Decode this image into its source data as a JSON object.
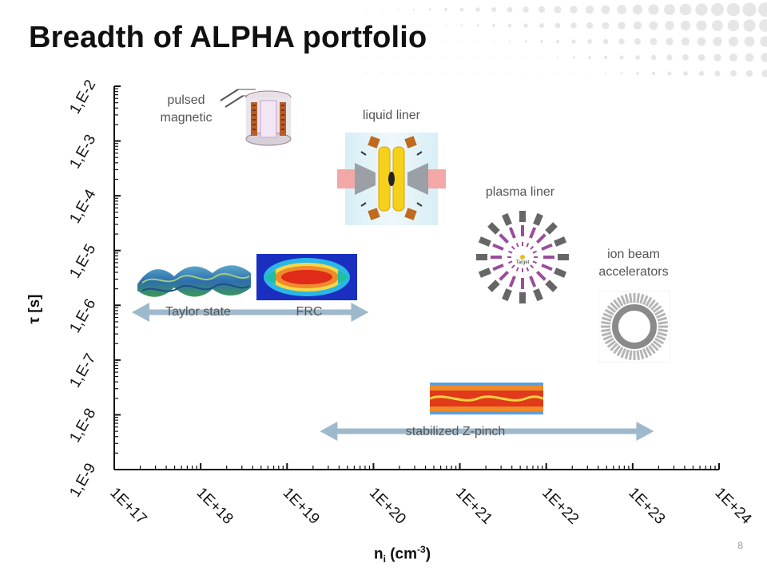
{
  "slide": {
    "title": "Breadth of ALPHA portfolio",
    "page_number": "8"
  },
  "chart_data": {
    "type": "scatter",
    "xlabel": "n_i (cm^-3)",
    "ylabel": "τ [s]",
    "x_scale": "log",
    "y_scale": "log",
    "xlim": [
      1e+17,
      1e+24
    ],
    "ylim": [
      1e-09,
      0.01
    ],
    "x_ticks": [
      "1E+17",
      "1E+18",
      "1E+19",
      "1E+20",
      "1E+21",
      "1E+22",
      "1E+23",
      "1E+24"
    ],
    "y_ticks": [
      "1,E-9",
      "1,E-8",
      "1,E-7",
      "1,E-6",
      "1,E-5",
      "1,E-4",
      "1,E-3",
      "1,E-2"
    ],
    "annotations": [
      {
        "text": "pulsed magnetic",
        "lines": [
          "pulsed",
          "magnetic"
        ],
        "image": "pulsed-magnetic-coil"
      },
      {
        "text": "liquid liner",
        "image": "liquid-liner-schematic"
      },
      {
        "text": "plasma liner",
        "image": "plasma-liner-jets"
      },
      {
        "text": "ion beam accelerators",
        "lines": [
          "ion beam",
          "accelerators"
        ],
        "image": "ion-beam-ring"
      },
      {
        "text": "Taylor state",
        "image": "taylor-state-twisted-flux"
      },
      {
        "text": "FRC",
        "image": "frc-simulation"
      },
      {
        "text": "stabilized Z-pinch",
        "image": "z-pinch-simulation"
      }
    ],
    "ranges": [
      {
        "label": "Taylor state / FRC",
        "x_range": [
          1e+17,
          1e+20
        ],
        "y": 6e-07
      },
      {
        "label": "stabilized Z-pinch",
        "x_range": [
          1.5e+19,
          2e+23
        ],
        "y": 5e-09
      }
    ],
    "axis_label_parts": {
      "x_main": "n",
      "x_sub": "i",
      "x_unit": " (cm",
      "x_sup": "-3",
      "x_close": ")",
      "y_label": "τ [s]"
    },
    "colors": {
      "axis": "#111111",
      "arrow": "#9fb9cc",
      "label_text": "#555555",
      "title": "#111111"
    }
  }
}
